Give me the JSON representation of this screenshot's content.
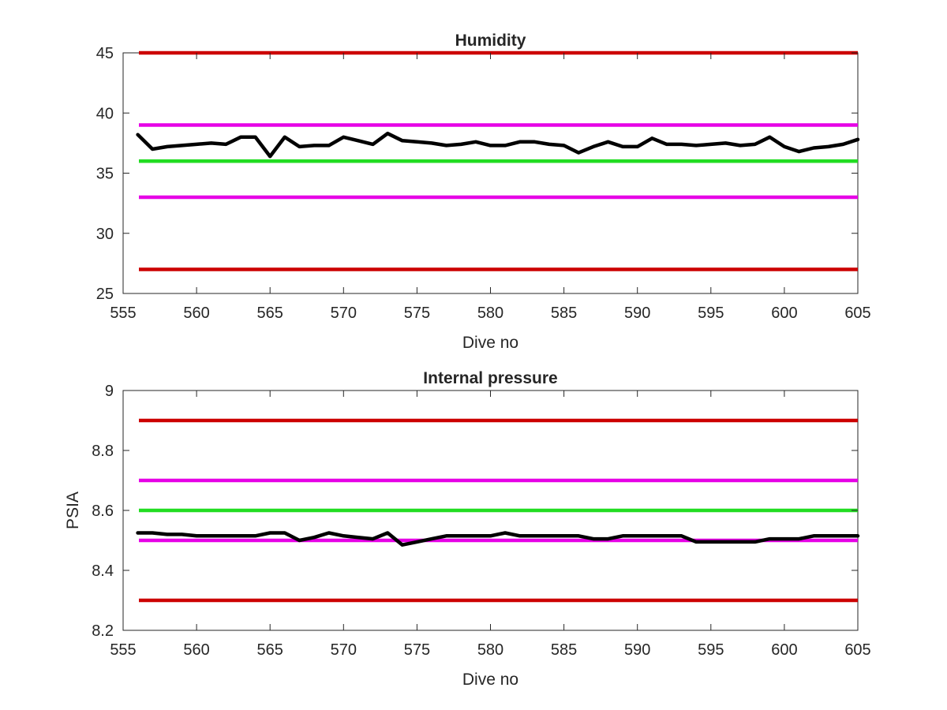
{
  "chart_data": [
    {
      "type": "line",
      "title": "Humidity",
      "xlabel": "Dive no",
      "ylabel": "",
      "xlim": [
        555,
        605
      ],
      "ylim": [
        25,
        45
      ],
      "xticks": [
        555,
        560,
        565,
        570,
        575,
        580,
        585,
        590,
        595,
        600,
        605
      ],
      "yticks": [
        25,
        30,
        35,
        40,
        45
      ],
      "grid": false,
      "legend": "none",
      "reference_lines": [
        {
          "y": 45,
          "color": "#cc0000"
        },
        {
          "y": 39,
          "color": "#e600e6"
        },
        {
          "y": 36,
          "color": "#22dd22"
        },
        {
          "y": 33,
          "color": "#e600e6"
        },
        {
          "y": 27,
          "color": "#cc0000"
        }
      ],
      "series": [
        {
          "color": "#000000",
          "x": [
            556,
            557,
            558,
            559,
            560,
            561,
            562,
            563,
            564,
            565,
            566,
            567,
            568,
            569,
            570,
            571,
            572,
            573,
            574,
            575,
            576,
            577,
            578,
            579,
            580,
            581,
            582,
            583,
            584,
            585,
            586,
            587,
            588,
            589,
            590,
            591,
            592,
            593,
            594,
            595,
            596,
            597,
            598,
            599,
            600,
            601,
            602,
            603,
            604,
            605
          ],
          "y": [
            38.2,
            37.0,
            37.2,
            37.3,
            37.4,
            37.5,
            37.4,
            38.0,
            38.0,
            36.4,
            38.0,
            37.2,
            37.3,
            37.3,
            38.0,
            37.7,
            37.4,
            38.3,
            37.7,
            37.6,
            37.5,
            37.3,
            37.4,
            37.6,
            37.3,
            37.3,
            37.6,
            37.6,
            37.4,
            37.3,
            36.7,
            37.2,
            37.6,
            37.2,
            37.2,
            37.9,
            37.4,
            37.4,
            37.3,
            37.4,
            37.5,
            37.3,
            37.4,
            38.0,
            37.2,
            36.8,
            37.1,
            37.2,
            37.4,
            37.8
          ]
        }
      ]
    },
    {
      "type": "line",
      "title": "Internal pressure",
      "xlabel": "Dive no",
      "ylabel": "PSIA",
      "xlim": [
        555,
        605
      ],
      "ylim": [
        8.2,
        9.0
      ],
      "xticks": [
        555,
        560,
        565,
        570,
        575,
        580,
        585,
        590,
        595,
        600,
        605
      ],
      "yticks": [
        8.2,
        8.4,
        8.6,
        8.8,
        9
      ],
      "grid": false,
      "legend": "none",
      "reference_lines": [
        {
          "y": 8.9,
          "color": "#cc0000"
        },
        {
          "y": 8.7,
          "color": "#e600e6"
        },
        {
          "y": 8.6,
          "color": "#22dd22"
        },
        {
          "y": 8.5,
          "color": "#e600e6"
        },
        {
          "y": 8.3,
          "color": "#cc0000"
        }
      ],
      "series": [
        {
          "color": "#000000",
          "x": [
            556,
            557,
            558,
            559,
            560,
            561,
            562,
            563,
            564,
            565,
            566,
            567,
            568,
            569,
            570,
            571,
            572,
            573,
            574,
            575,
            576,
            577,
            578,
            579,
            580,
            581,
            582,
            583,
            584,
            585,
            586,
            587,
            588,
            589,
            590,
            591,
            592,
            593,
            594,
            595,
            596,
            597,
            598,
            599,
            600,
            601,
            602,
            603,
            604,
            605
          ],
          "y": [
            8.525,
            8.525,
            8.52,
            8.52,
            8.515,
            8.515,
            8.515,
            8.515,
            8.515,
            8.525,
            8.525,
            8.5,
            8.51,
            8.525,
            8.515,
            8.51,
            8.505,
            8.525,
            8.485,
            8.495,
            8.505,
            8.515,
            8.515,
            8.515,
            8.515,
            8.525,
            8.515,
            8.515,
            8.515,
            8.515,
            8.515,
            8.505,
            8.505,
            8.515,
            8.515,
            8.515,
            8.515,
            8.515,
            8.495,
            8.495,
            8.495,
            8.495,
            8.495,
            8.505,
            8.505,
            8.505,
            8.515,
            8.515,
            8.515,
            8.515
          ]
        }
      ]
    }
  ]
}
